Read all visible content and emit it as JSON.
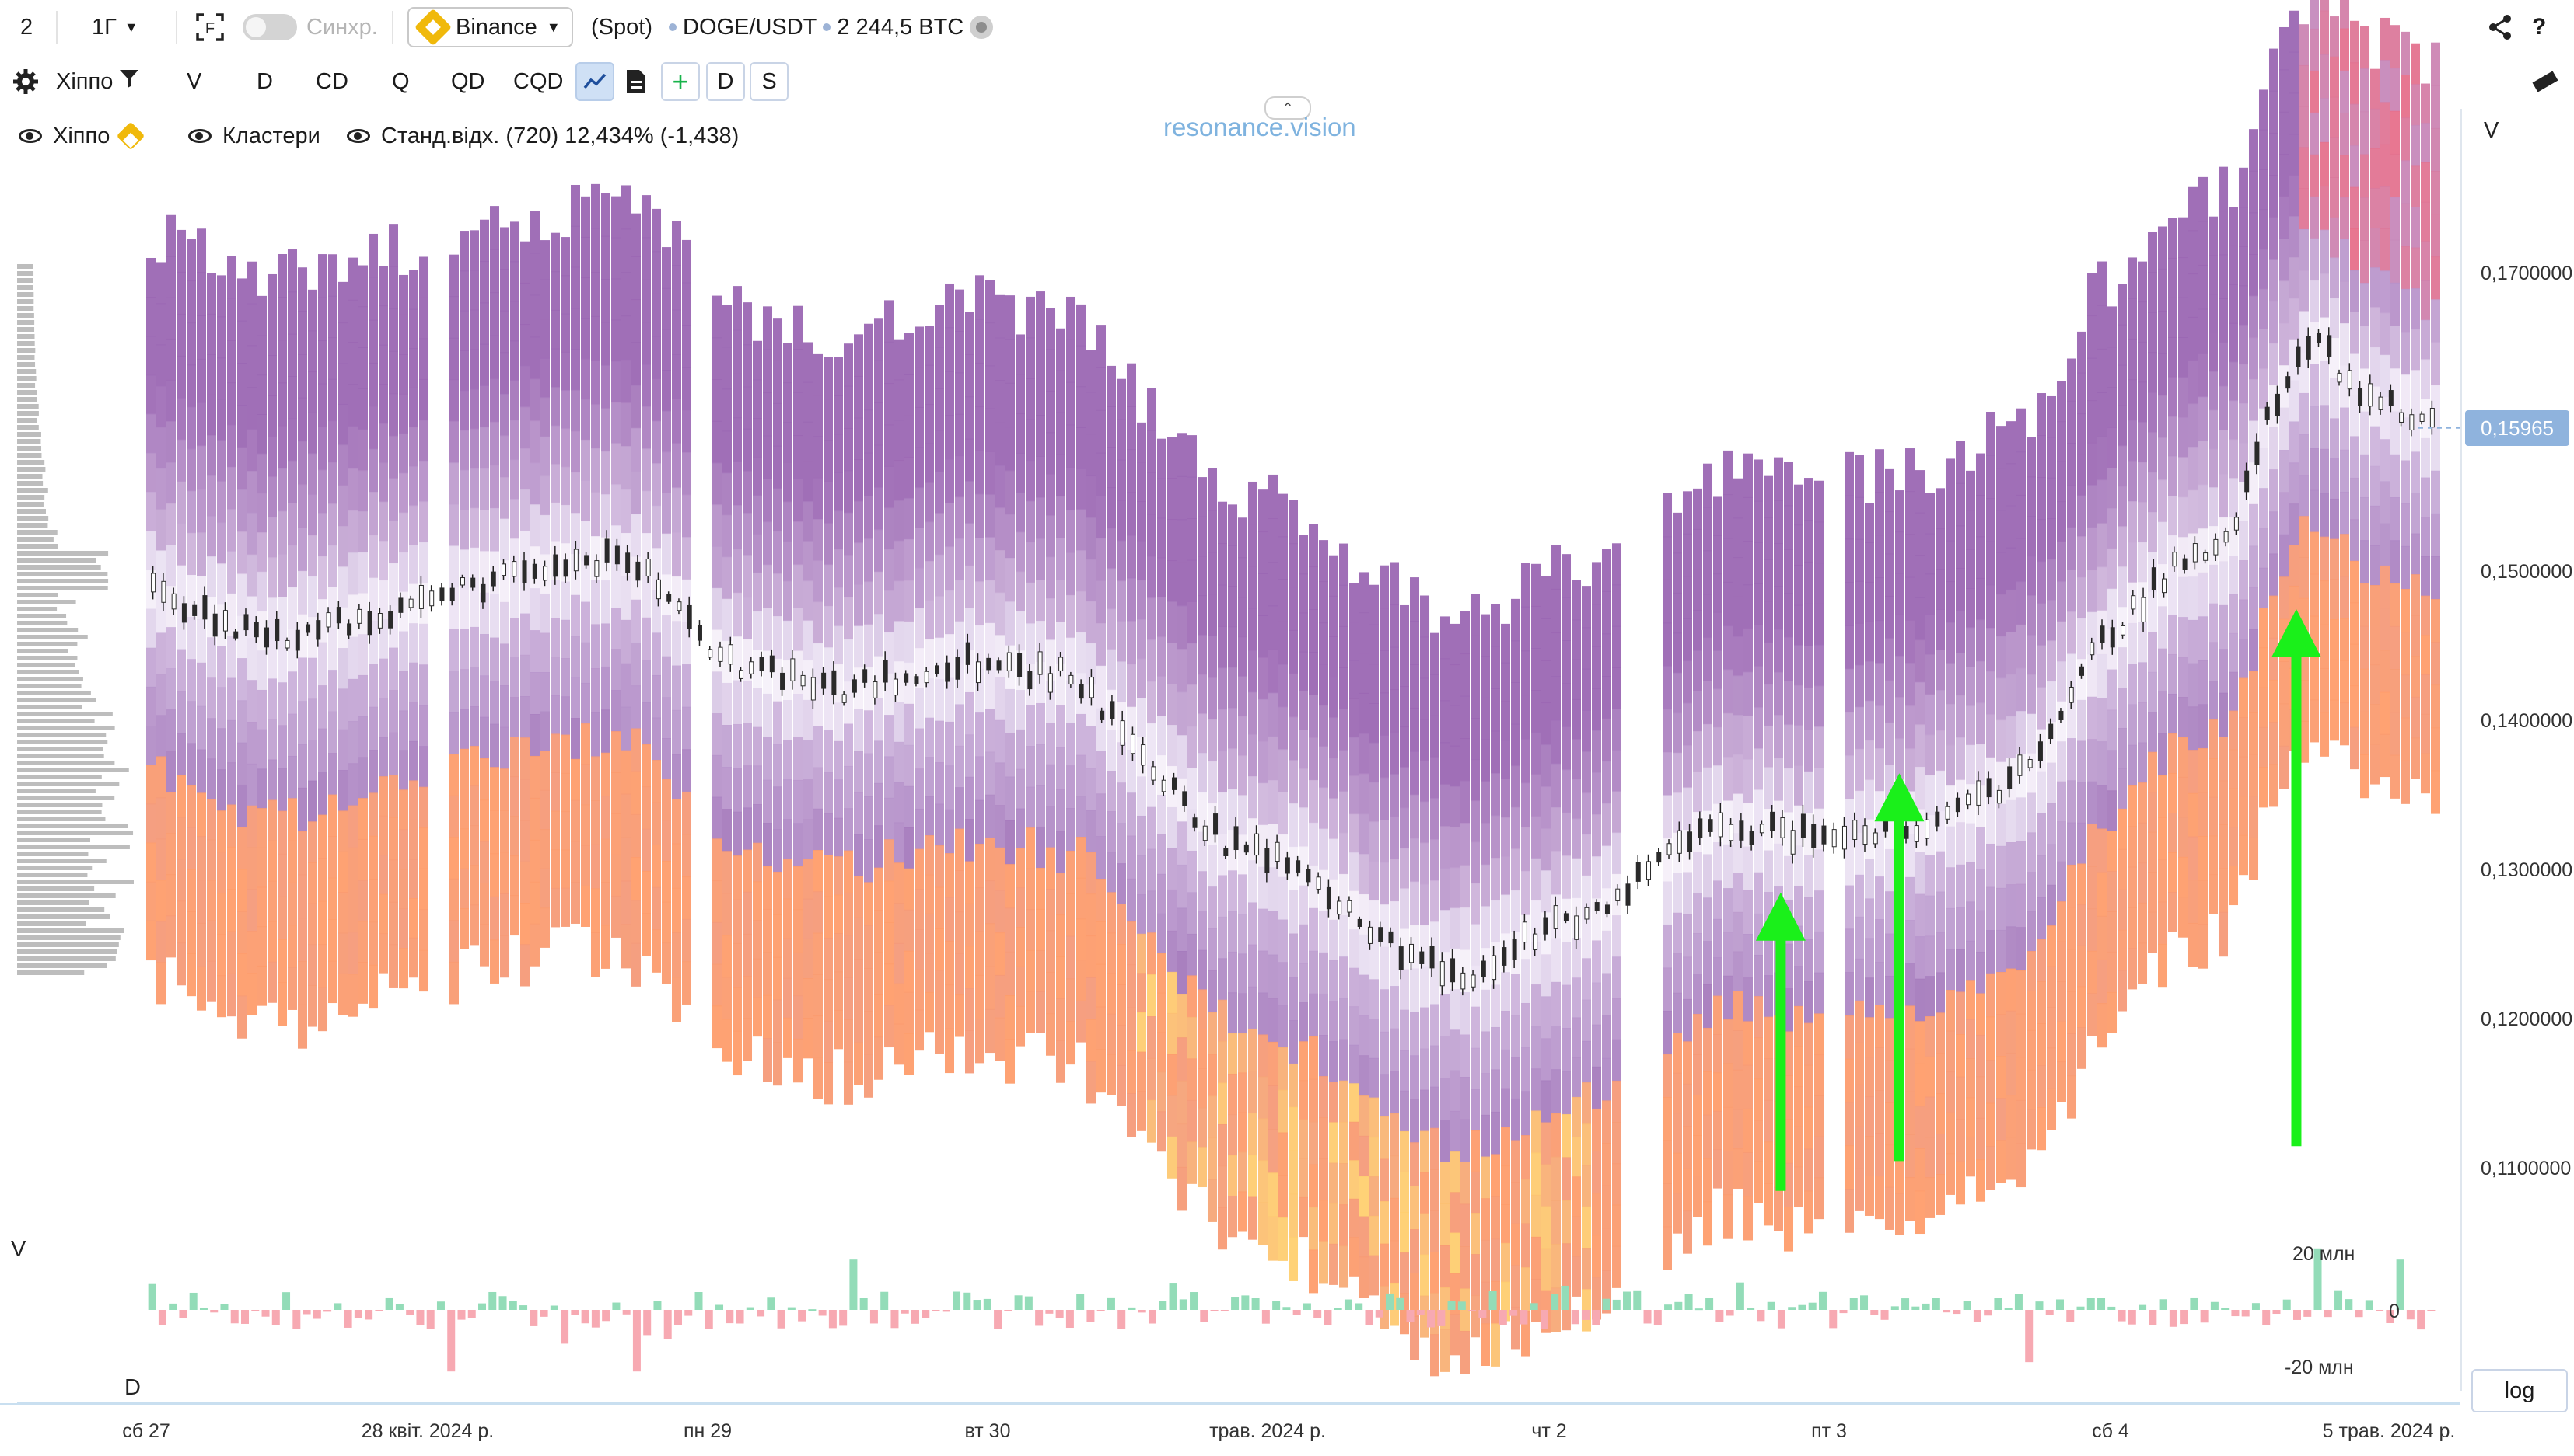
{
  "topbar": {
    "layout_count": "2",
    "interval": "1Г",
    "sync_label": "Синхр.",
    "exchange": "Binance",
    "market": "(Spot)",
    "pair": "DOGE/USDT",
    "volume": "2 244,5 BTC"
  },
  "toolbar": {
    "indicator_name": "Хіппо",
    "buttons": [
      "V",
      "D",
      "CD",
      "Q",
      "QD",
      "CQD"
    ],
    "extra_buttons": [
      "+",
      "D",
      "S"
    ]
  },
  "legend": {
    "item1": "Хіппо",
    "item2": "Кластери",
    "item3": "Станд.відх. (720) 12,434% (-1,438)"
  },
  "watermark": "resonance.vision",
  "price_axis": {
    "header": "V",
    "labels": [
      "0,1700000",
      "0,1500000",
      "0,1400000",
      "0,1300000",
      "0,1200000",
      "0,1100000"
    ],
    "current_price": "0,15965"
  },
  "volume_axis": {
    "labels": [
      "20 млн",
      "0",
      "-20 млн"
    ]
  },
  "pane_labels": {
    "v": "V",
    "d": "D"
  },
  "time_axis": {
    "labels": [
      "сб 27",
      "28 квіт. 2024 р.",
      "пн 29",
      "вт 30",
      "трав. 2024 р.",
      "чт 2",
      "пт 3",
      "сб 4",
      "5 трав. 2024 р."
    ]
  },
  "log_button": "log",
  "chart_data": {
    "type": "heatmap",
    "symbol": "DOGE/USDT",
    "interval": "1h",
    "ylim": [
      0.105,
      0.178
    ],
    "price_points": [
      {
        "t": 0,
        "p": 0.149
      },
      {
        "t": 6,
        "p": 0.147
      },
      {
        "t": 12,
        "p": 0.1455
      },
      {
        "t": 24,
        "p": 0.1475
      },
      {
        "t": 36,
        "p": 0.15
      },
      {
        "t": 44,
        "p": 0.1508
      },
      {
        "t": 48,
        "p": 0.15
      },
      {
        "t": 56,
        "p": 0.144
      },
      {
        "t": 66,
        "p": 0.142
      },
      {
        "t": 80,
        "p": 0.144
      },
      {
        "t": 90,
        "p": 0.143
      },
      {
        "t": 96,
        "p": 0.138
      },
      {
        "t": 104,
        "p": 0.132
      },
      {
        "t": 112,
        "p": 0.13
      },
      {
        "t": 120,
        "p": 0.125
      },
      {
        "t": 128,
        "p": 0.123
      },
      {
        "t": 134,
        "p": 0.1255
      },
      {
        "t": 140,
        "p": 0.127
      },
      {
        "t": 146,
        "p": 0.13
      },
      {
        "t": 152,
        "p": 0.133
      },
      {
        "t": 158,
        "p": 0.1325
      },
      {
        "t": 164,
        "p": 0.132
      },
      {
        "t": 172,
        "p": 0.133
      },
      {
        "t": 180,
        "p": 0.1355
      },
      {
        "t": 184,
        "p": 0.138
      },
      {
        "t": 188,
        "p": 0.144
      },
      {
        "t": 196,
        "p": 0.15
      },
      {
        "t": 202,
        "p": 0.152
      },
      {
        "t": 206,
        "p": 0.161
      },
      {
        "t": 210,
        "p": 0.166
      },
      {
        "t": 214,
        "p": 0.162
      },
      {
        "t": 222,
        "p": 0.16
      }
    ],
    "volume_delta_range": [
      -20000000,
      20000000
    ],
    "arrows": 3
  }
}
